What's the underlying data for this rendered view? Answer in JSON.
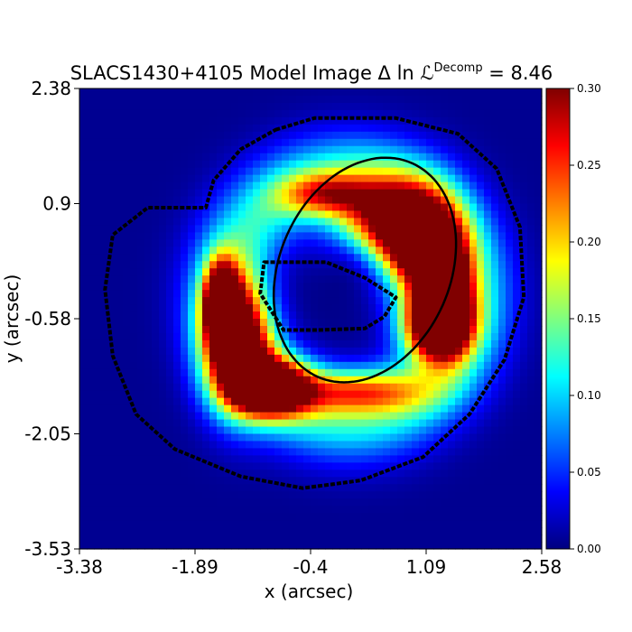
{
  "chart_data": {
    "type": "heatmap",
    "title_prefix": "SLACS1430+4105 Model Image ",
    "title_math": "Δ ln ℒ",
    "title_sup": "Decomp",
    "title_value": " = 8.46",
    "xlabel": "x (arcsec)",
    "ylabel": "y (arcsec)",
    "xlim": [
      -3.38,
      2.58
    ],
    "ylim": [
      -3.53,
      2.38
    ],
    "xticks": [
      "-3.38",
      "-1.89",
      "-0.4",
      "1.09",
      "2.58"
    ],
    "yticks": [
      "2.38",
      "0.9",
      "-0.58",
      "-2.05",
      "-3.53"
    ],
    "colorbar": {
      "range": [
        0.0,
        0.3
      ],
      "ticks": [
        "0.00",
        "0.05",
        "0.10",
        "0.15",
        "0.20",
        "0.25",
        "0.30"
      ],
      "colormap": "jet"
    },
    "source_blobs": [
      {
        "x": 0.55,
        "y": 0.55,
        "sx": 0.45,
        "sy": 0.4,
        "amp": 0.33
      },
      {
        "x": 1.05,
        "y": 0.25,
        "sx": 0.35,
        "sy": 0.5,
        "amp": 0.3
      },
      {
        "x": 1.35,
        "y": -0.3,
        "sx": 0.22,
        "sy": 0.45,
        "amp": 0.27
      },
      {
        "x": 1.2,
        "y": -0.65,
        "sx": 0.3,
        "sy": 0.3,
        "amp": 0.31
      },
      {
        "x": -1.35,
        "y": -0.9,
        "sx": 0.3,
        "sy": 0.55,
        "amp": 0.33
      },
      {
        "x": -1.55,
        "y": -0.35,
        "sx": 0.15,
        "sy": 0.35,
        "amp": 0.3
      },
      {
        "x": -0.9,
        "y": -1.45,
        "sx": 0.35,
        "sy": 0.25,
        "amp": 0.34
      },
      {
        "x": -0.2,
        "y": 1.0,
        "sx": 0.4,
        "sy": 0.2,
        "amp": 0.17
      },
      {
        "x": 0.2,
        "y": -1.5,
        "sx": 0.6,
        "sy": 0.2,
        "amp": 0.17
      }
    ],
    "ring": {
      "cx": 0.1,
      "cy": -0.3,
      "radius": 1.55,
      "width": 0.55,
      "amp": 0.12
    },
    "critical_curve": {
      "cx": 0.3,
      "cy": 0.05,
      "a": 1.5,
      "b": 1.1,
      "angle_deg": 66
    },
    "outer_mask": [
      [
        -0.85,
        1.85
      ],
      [
        -0.35,
        2.0
      ],
      [
        0.7,
        2.0
      ],
      [
        1.5,
        1.8
      ],
      [
        2.0,
        1.35
      ],
      [
        2.3,
        0.6
      ],
      [
        2.35,
        -0.3
      ],
      [
        2.1,
        -1.1
      ],
      [
        1.65,
        -1.8
      ],
      [
        1.05,
        -2.35
      ],
      [
        0.25,
        -2.65
      ],
      [
        -0.5,
        -2.75
      ],
      [
        -1.3,
        -2.6
      ],
      [
        -2.15,
        -2.25
      ],
      [
        -2.65,
        -1.8
      ],
      [
        -2.95,
        -1.05
      ],
      [
        -3.05,
        -0.2
      ],
      [
        -2.95,
        0.5
      ],
      [
        -2.5,
        0.85
      ],
      [
        -1.75,
        0.85
      ],
      [
        -1.65,
        1.2
      ],
      [
        -1.3,
        1.6
      ]
    ],
    "inner_mask": [
      [
        -1.0,
        0.15
      ],
      [
        -0.2,
        0.15
      ],
      [
        0.3,
        -0.05
      ],
      [
        0.7,
        -0.3
      ],
      [
        0.55,
        -0.55
      ],
      [
        0.3,
        -0.7
      ],
      [
        -0.3,
        -0.72
      ],
      [
        -0.75,
        -0.72
      ],
      [
        -1.05,
        -0.25
      ]
    ]
  }
}
